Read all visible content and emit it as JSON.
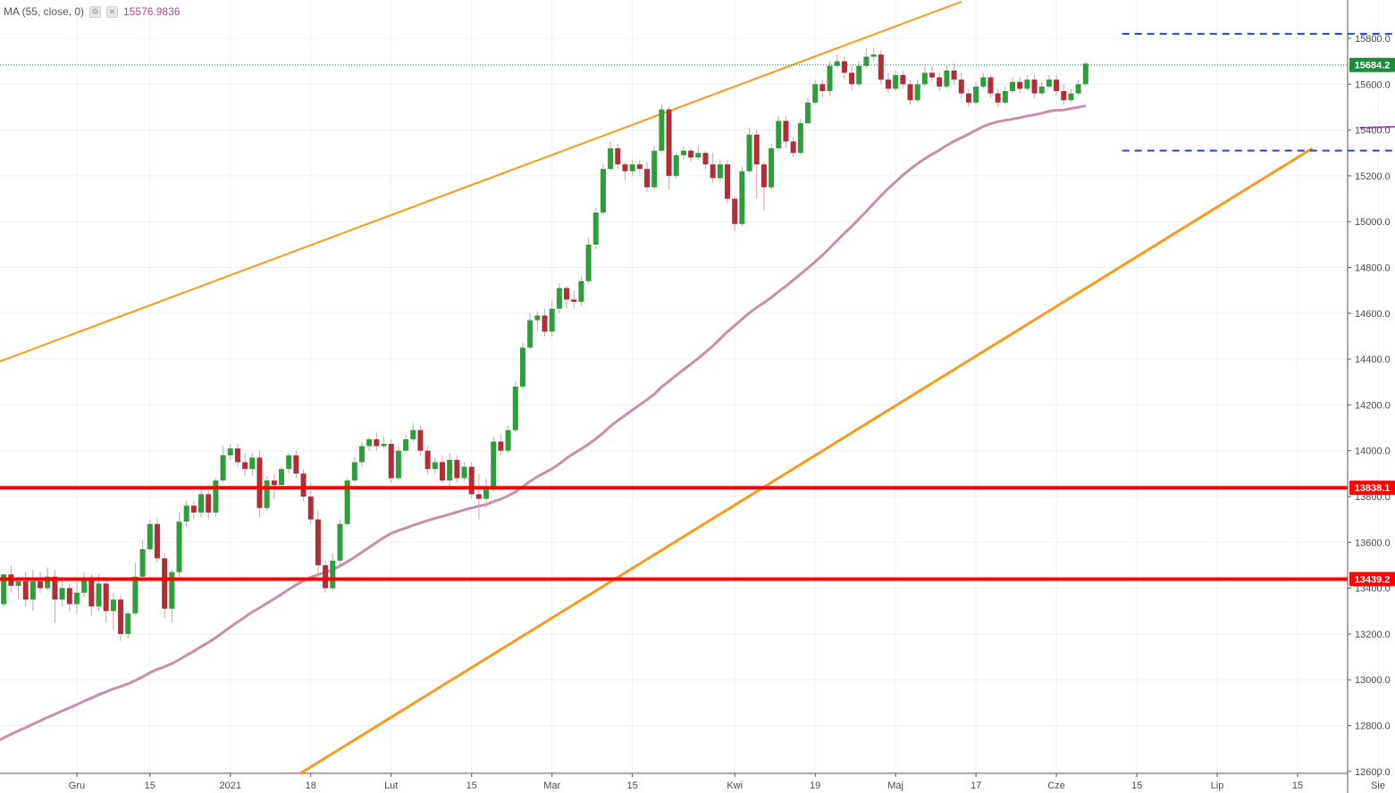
{
  "legend": {
    "label": "MA (55, close, 0)",
    "value": "15576.9836",
    "settings_icon": "gear-icon",
    "close_icon": "close-icon"
  },
  "colors": {
    "up": "#2e9e3a",
    "down": "#b22d36",
    "wick": "#c9a2b0",
    "ma": "#c890a8",
    "trend": "#f79b1c",
    "support": "#ff0000",
    "range": "#2a3fe8",
    "flag": "#b44fd8",
    "last": "#1f8a3a"
  },
  "chart_data": {
    "type": "candlestick",
    "title": "",
    "xlabel": "",
    "ylabel": "",
    "ylim": [
      12600,
      15880
    ],
    "y_ticks": [
      "12600.0",
      "12800.0",
      "13000.0",
      "13200.0",
      "13400.0",
      "13600.0",
      "13800.0",
      "14000.0",
      "14200.0",
      "14400.0",
      "14600.0",
      "14800.0",
      "15000.0",
      "15200.0",
      "15400.0",
      "15600.0",
      "15800.0"
    ],
    "x_tick_labels": [
      {
        "label": "Gru",
        "index": 11
      },
      {
        "label": "15",
        "index": 21
      },
      {
        "label": "2021",
        "index": 32
      },
      {
        "label": "18",
        "index": 43
      },
      {
        "label": "Lut",
        "index": 54
      },
      {
        "label": "15",
        "index": 65
      },
      {
        "label": "Mar",
        "index": 76
      },
      {
        "label": "15",
        "index": 87
      },
      {
        "label": "Kwi",
        "index": 101
      },
      {
        "label": "19",
        "index": 112
      },
      {
        "label": "Maj",
        "index": 123
      },
      {
        "label": "17",
        "index": 134
      },
      {
        "label": "Cze",
        "index": 145
      },
      {
        "label": "15",
        "index": 156
      },
      {
        "label": "Lip",
        "index": 167
      },
      {
        "label": "15",
        "index": 178
      },
      {
        "label": "Sie",
        "index": 189
      }
    ],
    "candles_ohlc": [
      [
        13280,
        13330,
        13160,
        13340
      ],
      [
        13330,
        13460,
        13320,
        13460
      ],
      [
        13460,
        13410,
        13380,
        13500
      ],
      [
        13410,
        13430,
        13350,
        13450
      ],
      [
        13430,
        13350,
        13320,
        13470
      ],
      [
        13350,
        13430,
        13300,
        13480
      ],
      [
        13430,
        13400,
        13380,
        13470
      ],
      [
        13400,
        13450,
        13390,
        13490
      ],
      [
        13450,
        13350,
        13250,
        13480
      ],
      [
        13350,
        13400,
        13320,
        13440
      ],
      [
        13400,
        13330,
        13300,
        13420
      ],
      [
        13330,
        13380,
        13290,
        13430
      ],
      [
        13380,
        13440,
        13360,
        13470
      ],
      [
        13440,
        13320,
        13280,
        13460
      ],
      [
        13320,
        13420,
        13300,
        13460
      ],
      [
        13420,
        13300,
        13250,
        13440
      ],
      [
        13300,
        13350,
        13220,
        13380
      ],
      [
        13350,
        13200,
        13170,
        13370
      ],
      [
        13200,
        13290,
        13180,
        13300
      ],
      [
        13290,
        13450,
        13280,
        13510
      ],
      [
        13450,
        13570,
        13450,
        13610
      ],
      [
        13570,
        13680,
        13560,
        13700
      ],
      [
        13680,
        13530,
        13510,
        13710
      ],
      [
        13530,
        13310,
        13270,
        13550
      ],
      [
        13310,
        13470,
        13250,
        13480
      ],
      [
        13470,
        13690,
        13450,
        13730
      ],
      [
        13690,
        13760,
        13670,
        13780
      ],
      [
        13760,
        13730,
        13700,
        13780
      ],
      [
        13730,
        13810,
        13710,
        13840
      ],
      [
        13810,
        13730,
        13700,
        13850
      ],
      [
        13730,
        13870,
        13710,
        13880
      ],
      [
        13870,
        13980,
        13860,
        14020
      ],
      [
        13980,
        14010,
        13960,
        14030
      ],
      [
        14010,
        13950,
        13930,
        14030
      ],
      [
        13950,
        13920,
        13890,
        13990
      ],
      [
        13920,
        13970,
        13890,
        13990
      ],
      [
        13970,
        13750,
        13710,
        14000
      ],
      [
        13750,
        13870,
        13740,
        13890
      ],
      [
        13870,
        13850,
        13790,
        13900
      ],
      [
        13850,
        13920,
        13830,
        13930
      ],
      [
        13920,
        13980,
        13900,
        13990
      ],
      [
        13980,
        13900,
        13880,
        14000
      ],
      [
        13900,
        13800,
        13780,
        13920
      ],
      [
        13800,
        13700,
        13680,
        13860
      ],
      [
        13700,
        13500,
        13450,
        13740
      ],
      [
        13500,
        13400,
        13380,
        13520
      ],
      [
        13400,
        13520,
        13390,
        13550
      ],
      [
        13520,
        13680,
        13500,
        13700
      ],
      [
        13680,
        13870,
        13670,
        13880
      ],
      [
        13870,
        13950,
        13860,
        13970
      ],
      [
        13950,
        14020,
        13930,
        14040
      ],
      [
        14020,
        14050,
        14000,
        14060
      ],
      [
        14050,
        14020,
        14000,
        14080
      ],
      [
        14020,
        14030,
        14010,
        14060
      ],
      [
        14030,
        13880,
        13860,
        14050
      ],
      [
        13880,
        14000,
        13870,
        14020
      ],
      [
        14000,
        14050,
        13990,
        14070
      ],
      [
        14050,
        14090,
        14040,
        14120
      ],
      [
        14090,
        14000,
        13980,
        14110
      ],
      [
        14000,
        13920,
        13900,
        14020
      ],
      [
        13920,
        13950,
        13900,
        13970
      ],
      [
        13950,
        13870,
        13860,
        13980
      ],
      [
        13870,
        13960,
        13840,
        13990
      ],
      [
        13960,
        13880,
        13860,
        13980
      ],
      [
        13880,
        13930,
        13870,
        13950
      ],
      [
        13930,
        13810,
        13790,
        13950
      ],
      [
        13810,
        13790,
        13700,
        13900
      ],
      [
        13790,
        13830,
        13750,
        13880
      ],
      [
        13830,
        14040,
        13820,
        14060
      ],
      [
        14040,
        14000,
        13980,
        14070
      ],
      [
        14000,
        14090,
        13990,
        14110
      ],
      [
        14090,
        14280,
        14080,
        14300
      ],
      [
        14280,
        14450,
        14270,
        14470
      ],
      [
        14450,
        14570,
        14440,
        14600
      ],
      [
        14570,
        14590,
        14520,
        14610
      ],
      [
        14590,
        14520,
        14500,
        14620
      ],
      [
        14520,
        14620,
        14500,
        14660
      ],
      [
        14620,
        14710,
        14600,
        14730
      ],
      [
        14710,
        14660,
        14620,
        14720
      ],
      [
        14660,
        14650,
        14620,
        14700
      ],
      [
        14650,
        14740,
        14630,
        14760
      ],
      [
        14740,
        14900,
        14730,
        14930
      ],
      [
        14900,
        15040,
        14880,
        15060
      ],
      [
        15040,
        15230,
        15030,
        15250
      ],
      [
        15230,
        15320,
        15220,
        15350
      ],
      [
        15320,
        15250,
        15230,
        15340
      ],
      [
        15250,
        15220,
        15180,
        15260
      ],
      [
        15220,
        15250,
        15200,
        15270
      ],
      [
        15250,
        15230,
        15210,
        15270
      ],
      [
        15230,
        15150,
        15130,
        15260
      ],
      [
        15150,
        15310,
        15140,
        15330
      ],
      [
        15310,
        15490,
        15300,
        15510
      ],
      [
        15490,
        15200,
        15140,
        15500
      ],
      [
        15200,
        15290,
        15190,
        15300
      ],
      [
        15290,
        15310,
        15270,
        15330
      ],
      [
        15310,
        15280,
        15260,
        15320
      ],
      [
        15280,
        15300,
        15270,
        15330
      ],
      [
        15300,
        15250,
        15230,
        15310
      ],
      [
        15250,
        15190,
        15170,
        15300
      ],
      [
        15190,
        15250,
        15170,
        15270
      ],
      [
        15250,
        15100,
        15080,
        15270
      ],
      [
        15100,
        14990,
        14960,
        15110
      ],
      [
        14990,
        15220,
        14980,
        15240
      ],
      [
        15220,
        15380,
        15210,
        15410
      ],
      [
        15380,
        15250,
        15100,
        15400
      ],
      [
        15250,
        15150,
        15050,
        15260
      ],
      [
        15150,
        15320,
        15140,
        15340
      ],
      [
        15320,
        15440,
        15310,
        15460
      ],
      [
        15440,
        15350,
        15320,
        15460
      ],
      [
        15350,
        15300,
        15280,
        15370
      ],
      [
        15300,
        15430,
        15290,
        15450
      ],
      [
        15430,
        15520,
        15420,
        15540
      ],
      [
        15520,
        15600,
        15510,
        15620
      ],
      [
        15600,
        15570,
        15540,
        15620
      ],
      [
        15570,
        15680,
        15550,
        15700
      ],
      [
        15680,
        15700,
        15670,
        15730
      ],
      [
        15700,
        15650,
        15620,
        15720
      ],
      [
        15650,
        15600,
        15570,
        15680
      ],
      [
        15600,
        15680,
        15590,
        15700
      ],
      [
        15680,
        15720,
        15670,
        15760
      ],
      [
        15720,
        15730,
        15700,
        15760
      ],
      [
        15730,
        15620,
        15600,
        15750
      ],
      [
        15620,
        15580,
        15560,
        15650
      ],
      [
        15580,
        15640,
        15570,
        15660
      ],
      [
        15640,
        15600,
        15580,
        15660
      ],
      [
        15600,
        15530,
        15510,
        15620
      ],
      [
        15530,
        15600,
        15520,
        15620
      ],
      [
        15600,
        15650,
        15590,
        15680
      ],
      [
        15650,
        15630,
        15610,
        15680
      ],
      [
        15630,
        15590,
        15570,
        15650
      ],
      [
        15590,
        15660,
        15580,
        15680
      ],
      [
        15660,
        15620,
        15600,
        15690
      ],
      [
        15620,
        15560,
        15540,
        15650
      ],
      [
        15560,
        15520,
        15500,
        15580
      ],
      [
        15520,
        15590,
        15510,
        15610
      ],
      [
        15590,
        15630,
        15580,
        15650
      ],
      [
        15630,
        15560,
        15540,
        15640
      ],
      [
        15560,
        15520,
        15500,
        15580
      ],
      [
        15520,
        15570,
        15510,
        15590
      ],
      [
        15570,
        15610,
        15560,
        15630
      ],
      [
        15610,
        15580,
        15560,
        15630
      ],
      [
        15580,
        15620,
        15570,
        15640
      ],
      [
        15620,
        15560,
        15540,
        15640
      ],
      [
        15560,
        15590,
        15550,
        15610
      ],
      [
        15590,
        15620,
        15580,
        15640
      ],
      [
        15620,
        15570,
        15550,
        15640
      ],
      [
        15570,
        15530,
        15510,
        15600
      ],
      [
        15530,
        15560,
        15520,
        15580
      ],
      [
        15560,
        15600,
        15550,
        15620
      ],
      [
        15600,
        15690,
        15590,
        15700
      ]
    ],
    "ma_series": {
      "name": "MA (55, close, 0)",
      "last_value": 15576.9836
    },
    "price_badges": [
      {
        "value": "15684.2",
        "color": "#1f8a3a"
      },
      {
        "value": "13838.1",
        "color": "#ff0000"
      },
      {
        "value": "13439.2",
        "color": "#ff0000"
      }
    ],
    "horizontal_levels": [
      13838.1,
      13439.2
    ],
    "range_levels": [
      15820,
      15310
    ],
    "flag_levels": [
      15660,
      15420
    ],
    "last_price": 15684.2
  }
}
